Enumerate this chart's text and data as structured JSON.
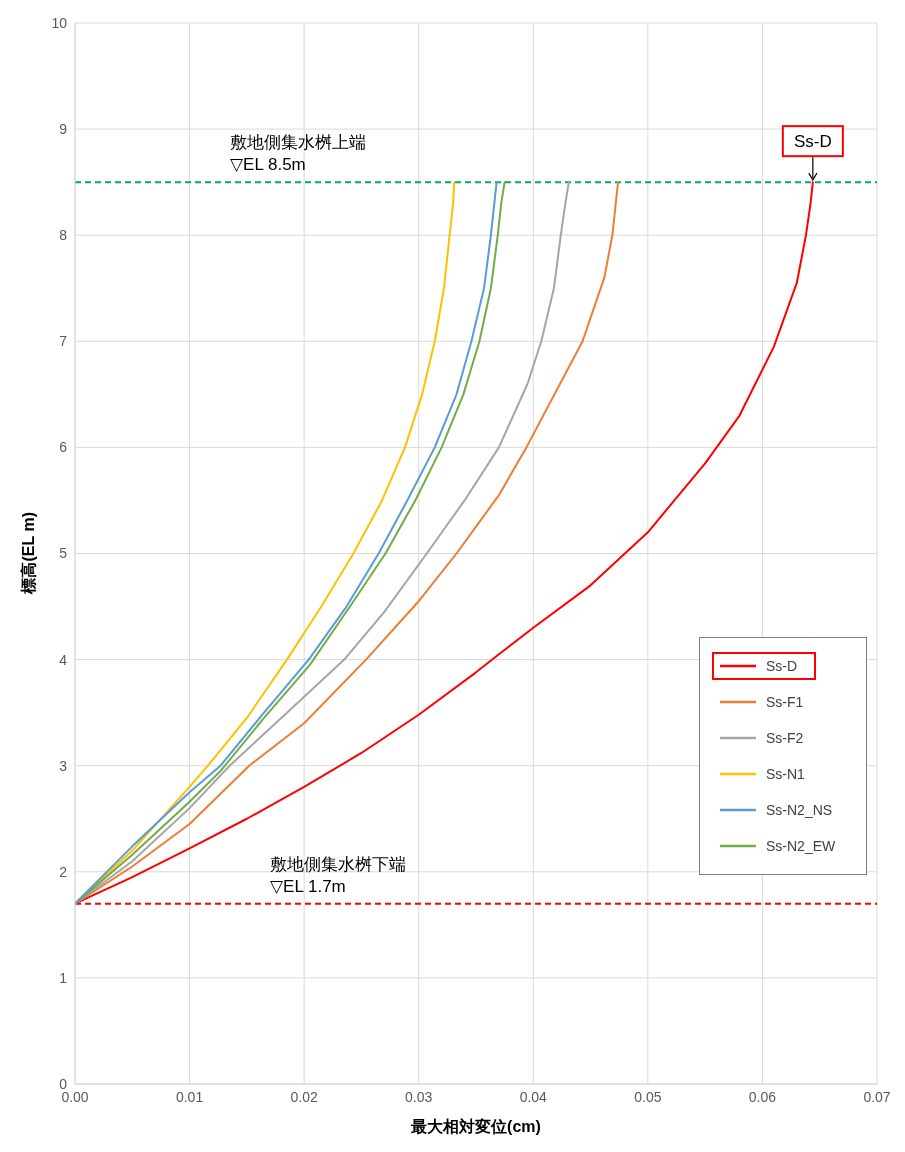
{
  "chart_data": {
    "type": "line",
    "xlabel": "最大相対変位(cm)",
    "ylabel": "標高(EL m)",
    "xlim": [
      0,
      0.07
    ],
    "xticks": [
      {
        "value": 0,
        "label": "0.00"
      },
      {
        "value": 0.01,
        "label": "0.01"
      },
      {
        "value": 0.02,
        "label": "0.02"
      },
      {
        "value": 0.03,
        "label": "0.03"
      },
      {
        "value": 0.04,
        "label": "0.04"
      },
      {
        "value": 0.05,
        "label": "0.05"
      },
      {
        "value": 0.06,
        "label": "0.06"
      },
      {
        "value": 0.07,
        "label": "0.07"
      }
    ],
    "ylim": [
      0,
      10
    ],
    "yticks": [
      0,
      1,
      2,
      3,
      4,
      5,
      6,
      7,
      8,
      9,
      10
    ],
    "grid": true,
    "legend": "right",
    "marker": "none",
    "line_style": "solid",
    "series": [
      {
        "name": "Ss-D",
        "color": "#ff0000",
        "x": [
          0,
          0.005,
          0.01,
          0.015,
          0.02,
          0.025,
          0.03,
          0.035,
          0.037,
          0.04,
          0.045,
          0.05,
          0.055,
          0.058,
          0.061,
          0.063,
          0.0638,
          0.0642,
          0.0644
        ],
        "values": [
          1.7,
          1.95,
          2.22,
          2.5,
          2.8,
          3.12,
          3.48,
          3.88,
          4.05,
          4.3,
          4.7,
          5.2,
          5.85,
          6.3,
          6.95,
          7.55,
          8.0,
          8.3,
          8.5
        ]
      },
      {
        "name": "Ss-F1",
        "color": "#ed7d31",
        "x": [
          0,
          0.005,
          0.01,
          0.0152,
          0.02,
          0.0254,
          0.03,
          0.0333,
          0.037,
          0.0394,
          0.0443,
          0.0462,
          0.0469,
          0.0472,
          0.0474
        ],
        "values": [
          1.7,
          2.05,
          2.45,
          3.0,
          3.4,
          4.0,
          4.55,
          5.0,
          5.55,
          6.0,
          7.0,
          7.6,
          8.0,
          8.3,
          8.5
        ]
      },
      {
        "name": "Ss-F2",
        "color": "#a5a5a5",
        "x": [
          0,
          0.005,
          0.01,
          0.0135,
          0.0185,
          0.0235,
          0.027,
          0.0307,
          0.034,
          0.037,
          0.0395,
          0.0407,
          0.0418,
          0.0424,
          0.0428,
          0.0431
        ],
        "values": [
          1.7,
          2.1,
          2.6,
          3.0,
          3.5,
          4.0,
          4.45,
          5.0,
          5.5,
          6.0,
          6.6,
          7.0,
          7.5,
          8.0,
          8.3,
          8.5
        ]
      },
      {
        "name": "Ss-N1",
        "color": "#ffc000",
        "x": [
          0,
          0.005,
          0.01,
          0.0116,
          0.015,
          0.0185,
          0.0215,
          0.0243,
          0.0268,
          0.0288,
          0.0303,
          0.0314,
          0.0322,
          0.0327,
          0.033,
          0.0331
        ],
        "values": [
          1.7,
          2.2,
          2.8,
          3.0,
          3.45,
          4.0,
          4.5,
          5.0,
          5.5,
          6.0,
          6.5,
          7.0,
          7.5,
          8.0,
          8.3,
          8.5
        ]
      },
      {
        "name": "Ss-N2_NS",
        "color": "#5b9bd5",
        "x": [
          0,
          0.005,
          0.01,
          0.0127,
          0.0165,
          0.0204,
          0.0237,
          0.0265,
          0.029,
          0.0314,
          0.0333,
          0.0346,
          0.0357,
          0.0363,
          0.0366,
          0.0368
        ],
        "values": [
          1.7,
          2.24,
          2.75,
          3.0,
          3.5,
          4.0,
          4.5,
          5.0,
          5.5,
          6.0,
          6.5,
          7.0,
          7.5,
          8.0,
          8.3,
          8.5
        ]
      },
      {
        "name": "Ss-N2_EW",
        "color": "#70ad47",
        "x": [
          0,
          0.005,
          0.01,
          0.0127,
          0.0165,
          0.0205,
          0.024,
          0.0271,
          0.0297,
          0.032,
          0.0339,
          0.0353,
          0.0363,
          0.0369,
          0.0372,
          0.0375
        ],
        "values": [
          1.7,
          2.16,
          2.66,
          2.95,
          3.45,
          3.95,
          4.5,
          5.0,
          5.5,
          6.0,
          6.5,
          7.0,
          7.5,
          8.0,
          8.3,
          8.5
        ]
      }
    ],
    "ref_lines": [
      {
        "axis": "y",
        "value": 8.5,
        "label": "敷地側集水桝上端\n▽EL 8.5m",
        "color": "#00b050",
        "line_style": "dashed"
      },
      {
        "axis": "y",
        "value": 1.7,
        "label": "敷地側集水桝下端\n▽EL 1.7m",
        "color": "#ff0000",
        "line_style": "dashed"
      }
    ],
    "annotations": [
      {
        "text": "Ss-D",
        "x": 0.0644,
        "y": 8.5
      }
    ]
  }
}
